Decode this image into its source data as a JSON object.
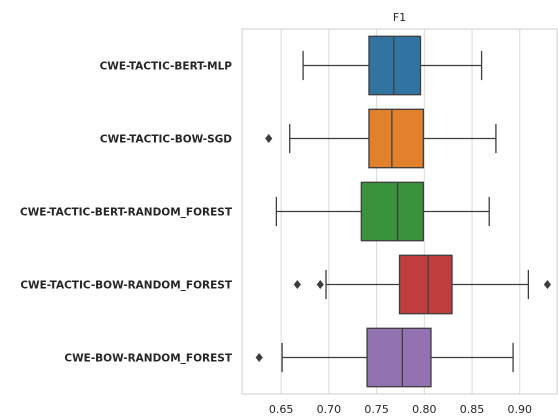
{
  "chart_data": {
    "type": "box",
    "title": "F1",
    "xlabel": "",
    "ylabel": "",
    "xlim": [
      0.609,
      0.939
    ],
    "xticks": [
      "0.65",
      "0.70",
      "0.75",
      "0.80",
      "0.85",
      "0.90"
    ],
    "xtick_values": [
      0.65,
      0.7,
      0.75,
      0.8,
      0.85,
      0.9
    ],
    "grid": "vertical",
    "categories": [
      "CWE-TACTIC-BERT-MLP",
      "CWE-TACTIC-BOW-SGD",
      "CWE-TACTIC-BERT-RANDOM_FOREST",
      "CWE-TACTIC-BOW-RANDOM_FOREST",
      "CWE-BOW-RANDOM_FOREST"
    ],
    "boxes": [
      {
        "whisker_low": 0.673,
        "q1": 0.742,
        "median": 0.768,
        "q3": 0.796,
        "whisker_high": 0.86,
        "outliers": [],
        "color": "#3274a1"
      },
      {
        "whisker_low": 0.659,
        "q1": 0.742,
        "median": 0.766,
        "q3": 0.799,
        "whisker_high": 0.875,
        "outliers": [
          0.637
        ],
        "color": "#e1812c"
      },
      {
        "whisker_low": 0.645,
        "q1": 0.734,
        "median": 0.772,
        "q3": 0.799,
        "whisker_high": 0.868,
        "outliers": [],
        "color": "#3a923a"
      },
      {
        "whisker_low": 0.697,
        "q1": 0.774,
        "median": 0.804,
        "q3": 0.829,
        "whisker_high": 0.909,
        "outliers": [
          0.667,
          0.691,
          0.929
        ],
        "color": "#c03d3e"
      },
      {
        "whisker_low": 0.651,
        "q1": 0.74,
        "median": 0.777,
        "q3": 0.807,
        "whisker_high": 0.893,
        "outliers": [
          0.627
        ],
        "color": "#9372b2"
      }
    ]
  }
}
